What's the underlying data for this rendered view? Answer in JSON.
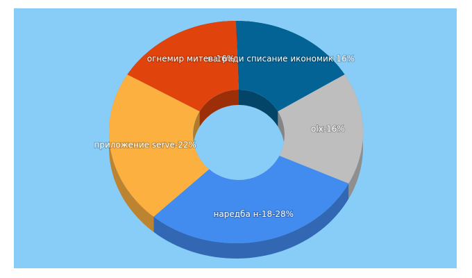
{
  "chart_data": {
    "type": "pie",
    "donut": true,
    "three_d": true,
    "categories": [
      "награди списание икономик-16%",
      "olx-16%",
      "наредба н-18-28%",
      "приложение serve-22%",
      "огнемир митев-16%"
    ],
    "values": [
      16,
      16,
      28,
      22,
      16
    ],
    "colors": [
      "#036394",
      "#bebebe",
      "#428bef",
      "#fbb040",
      "#e0430b"
    ]
  }
}
